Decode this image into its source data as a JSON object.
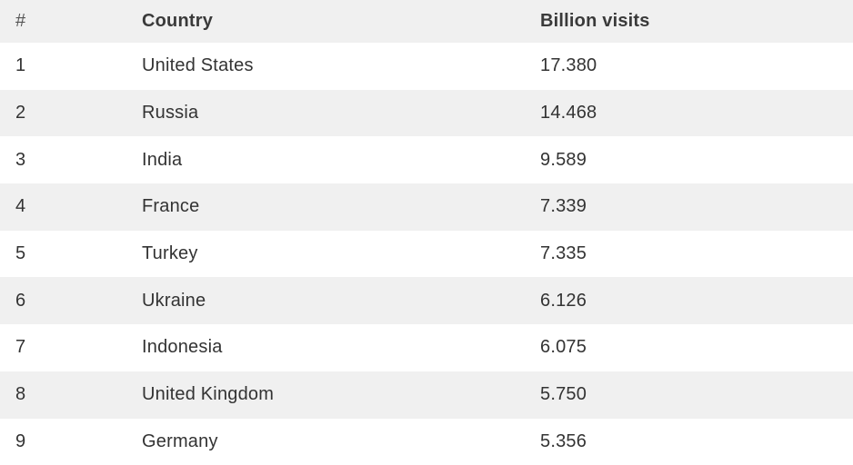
{
  "table": {
    "headers": {
      "rank": "#",
      "country": "Country",
      "visits": "Billion visits"
    },
    "rows": [
      {
        "rank": "1",
        "country": "United States",
        "visits": "17.380"
      },
      {
        "rank": "2",
        "country": "Russia",
        "visits": "14.468"
      },
      {
        "rank": "3",
        "country": "India",
        "visits": "9.589"
      },
      {
        "rank": "4",
        "country": "France",
        "visits": "7.339"
      },
      {
        "rank": "5",
        "country": "Turkey",
        "visits": "7.335"
      },
      {
        "rank": "6",
        "country": "Ukraine",
        "visits": "6.126"
      },
      {
        "rank": "7",
        "country": "Indonesia",
        "visits": "6.075"
      },
      {
        "rank": "8",
        "country": "United Kingdom",
        "visits": "5.750"
      },
      {
        "rank": "9",
        "country": "Germany",
        "visits": "5.356"
      }
    ]
  },
  "chart_data": {
    "type": "table",
    "columns": [
      "#",
      "Country",
      "Billion visits"
    ],
    "rows": [
      [
        1,
        "United States",
        17.38
      ],
      [
        2,
        "Russia",
        14.468
      ],
      [
        3,
        "India",
        9.589
      ],
      [
        4,
        "France",
        7.339
      ],
      [
        5,
        "Turkey",
        7.335
      ],
      [
        6,
        "Ukraine",
        6.126
      ],
      [
        7,
        "Indonesia",
        6.075
      ],
      [
        8,
        "United Kingdom",
        5.75
      ],
      [
        9,
        "Germany",
        5.356
      ]
    ]
  },
  "colors": {
    "stripe": "#f0f0f0",
    "background": "#ffffff",
    "text": "#333333"
  }
}
